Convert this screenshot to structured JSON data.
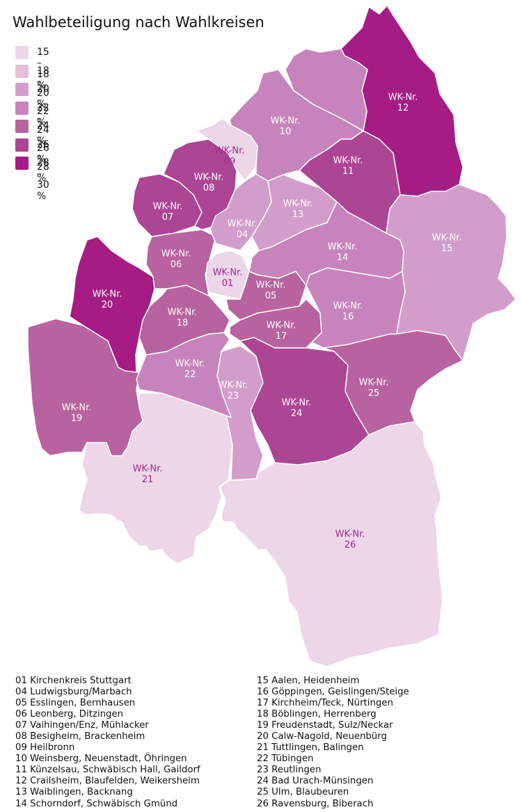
{
  "title": "Wahlbeteiligung nach Wahlkreisen",
  "wk_prefix": "WK-Nr.",
  "legend": [
    {
      "label": "15 – 18 %",
      "color": "#ecd6e8"
    },
    {
      "label": "18 – 20 %",
      "color": "#e2bedb"
    },
    {
      "label": "20 – 22 %",
      "color": "#d39dcb"
    },
    {
      "label": "22 – 24 %",
      "color": "#c784bc"
    },
    {
      "label": "24 – 26 %",
      "color": "#b8629f"
    },
    {
      "label": "26 – 28 %",
      "color": "#ad4595"
    },
    {
      "label": "28 – 30 %",
      "color": "#a51c84"
    }
  ],
  "regions": [
    {
      "nr": "01",
      "class": 0
    },
    {
      "nr": "04",
      "class": 2
    },
    {
      "nr": "05",
      "class": 4
    },
    {
      "nr": "06",
      "class": 4
    },
    {
      "nr": "07",
      "class": 5
    },
    {
      "nr": "08",
      "class": 5
    },
    {
      "nr": "09",
      "class": 0
    },
    {
      "nr": "10",
      "class": 3
    },
    {
      "nr": "11",
      "class": 5
    },
    {
      "nr": "12",
      "class": 6
    },
    {
      "nr": "13",
      "class": 2
    },
    {
      "nr": "14",
      "class": 3
    },
    {
      "nr": "15",
      "class": 2
    },
    {
      "nr": "16",
      "class": 3
    },
    {
      "nr": "17",
      "class": 4
    },
    {
      "nr": "18",
      "class": 4
    },
    {
      "nr": "19",
      "class": 4
    },
    {
      "nr": "20",
      "class": 6
    },
    {
      "nr": "21",
      "class": 0
    },
    {
      "nr": "22",
      "class": 3
    },
    {
      "nr": "23",
      "class": 2
    },
    {
      "nr": "24",
      "class": 5
    },
    {
      "nr": "25",
      "class": 4
    },
    {
      "nr": "26",
      "class": 0
    }
  ],
  "districts_left": [
    "01 Kirchenkreis Stuttgart",
    "04 Ludwigsburg/Marbach",
    "05 Esslingen, Bernhausen",
    "06 Leonberg, Ditzingen",
    "07 Vaihingen/Enz, Mühlacker",
    "08 Besigheim, Brackenheim",
    "09 Heilbronn",
    "10 Weinsberg, Neuenstadt, Öhringen",
    "11 Künzelsau, Schwäbisch Hall, Gaildorf",
    "12 Crailsheim, Blaufelden, Weikersheim",
    "13 Waiblingen, Backnang",
    "14 Schorndorf, Schwäbisch Gmünd"
  ],
  "districts_right": [
    "15 Aalen, Heidenheim",
    "16 Göppingen, Geislingen/Steige",
    "17 Kirchheim/Teck, Nürtingen",
    "18 Böblingen, Herrenberg",
    "19 Freudenstadt, Sulz/Neckar",
    "20 Calw-Nagold, Neuenbürg",
    "21 Tuttlingen, Balingen",
    "22 Tübingen",
    "23 Reutlingen",
    "24 Bad Urach-Münsingen",
    "25 Ulm, Blaubeuren",
    "26 Ravensburg, Biberach"
  ]
}
